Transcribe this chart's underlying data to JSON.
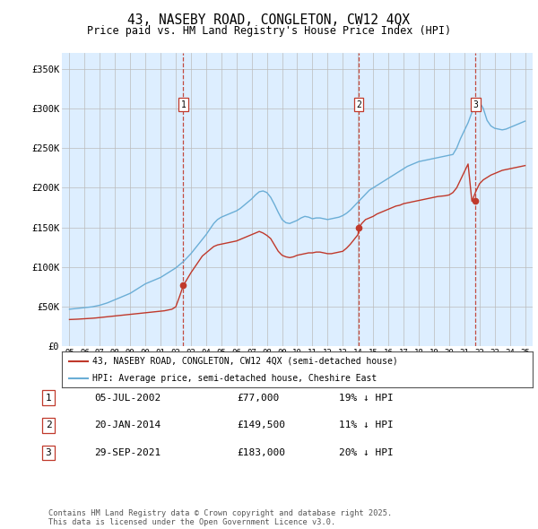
{
  "title": "43, NASEBY ROAD, CONGLETON, CW12 4QX",
  "subtitle": "Price paid vs. HM Land Registry's House Price Index (HPI)",
  "legend_line1": "43, NASEBY ROAD, CONGLETON, CW12 4QX (semi-detached house)",
  "legend_line2": "HPI: Average price, semi-detached house, Cheshire East",
  "footer": "Contains HM Land Registry data © Crown copyright and database right 2025.\nThis data is licensed under the Open Government Licence v3.0.",
  "transactions": [
    {
      "num": 1,
      "date": "05-JUL-2002",
      "price": "£77,000",
      "hpi": "19% ↓ HPI",
      "year": 2002.5
    },
    {
      "num": 2,
      "date": "20-JAN-2014",
      "price": "£149,500",
      "hpi": "11% ↓ HPI",
      "year": 2014.05
    },
    {
      "num": 3,
      "date": "29-SEP-2021",
      "price": "£183,000",
      "hpi": "20% ↓ HPI",
      "year": 2021.75
    }
  ],
  "transaction_prices": [
    77000,
    149500,
    183000
  ],
  "hpi_color": "#6baed6",
  "price_color": "#c0392b",
  "background_color": "#ddeeff",
  "ylim": [
    0,
    370000
  ],
  "yticks": [
    0,
    50000,
    100000,
    150000,
    200000,
    250000,
    300000,
    350000
  ],
  "ytick_labels": [
    "£0",
    "£50K",
    "£100K",
    "£150K",
    "£200K",
    "£250K",
    "£300K",
    "£350K"
  ],
  "hpi_data": {
    "years": [
      1995.0,
      1995.25,
      1995.5,
      1995.75,
      1996.0,
      1996.25,
      1996.5,
      1996.75,
      1997.0,
      1997.25,
      1997.5,
      1997.75,
      1998.0,
      1998.25,
      1998.5,
      1998.75,
      1999.0,
      1999.25,
      1999.5,
      1999.75,
      2000.0,
      2000.25,
      2000.5,
      2000.75,
      2001.0,
      2001.25,
      2001.5,
      2001.75,
      2002.0,
      2002.25,
      2002.5,
      2002.75,
      2003.0,
      2003.25,
      2003.5,
      2003.75,
      2004.0,
      2004.25,
      2004.5,
      2004.75,
      2005.0,
      2005.25,
      2005.5,
      2005.75,
      2006.0,
      2006.25,
      2006.5,
      2006.75,
      2007.0,
      2007.25,
      2007.5,
      2007.75,
      2008.0,
      2008.25,
      2008.5,
      2008.75,
      2009.0,
      2009.25,
      2009.5,
      2009.75,
      2010.0,
      2010.25,
      2010.5,
      2010.75,
      2011.0,
      2011.25,
      2011.5,
      2011.75,
      2012.0,
      2012.25,
      2012.5,
      2012.75,
      2013.0,
      2013.25,
      2013.5,
      2013.75,
      2014.0,
      2014.25,
      2014.5,
      2014.75,
      2015.0,
      2015.25,
      2015.5,
      2015.75,
      2016.0,
      2016.25,
      2016.5,
      2016.75,
      2017.0,
      2017.25,
      2017.5,
      2017.75,
      2018.0,
      2018.25,
      2018.5,
      2018.75,
      2019.0,
      2019.25,
      2019.5,
      2019.75,
      2020.0,
      2020.25,
      2020.5,
      2020.75,
      2021.0,
      2021.25,
      2021.5,
      2021.75,
      2022.0,
      2022.25,
      2022.5,
      2022.75,
      2023.0,
      2023.25,
      2023.5,
      2023.75,
      2024.0,
      2024.25,
      2024.5,
      2024.75,
      2025.0
    ],
    "values": [
      47000,
      47500,
      48000,
      48500,
      49000,
      49500,
      50000,
      51000,
      52000,
      53500,
      55000,
      57000,
      59000,
      61000,
      63000,
      65000,
      67000,
      70000,
      73000,
      76000,
      79000,
      81000,
      83000,
      85000,
      87000,
      90000,
      93000,
      96000,
      99000,
      103000,
      107000,
      112000,
      117000,
      123000,
      129000,
      135000,
      141000,
      148000,
      155000,
      160000,
      163000,
      165000,
      167000,
      169000,
      171000,
      174000,
      178000,
      182000,
      186000,
      191000,
      195000,
      196000,
      194000,
      188000,
      179000,
      169000,
      160000,
      156000,
      155000,
      157000,
      159000,
      162000,
      164000,
      163000,
      161000,
      162000,
      162000,
      161000,
      160000,
      161000,
      162000,
      163000,
      165000,
      168000,
      172000,
      177000,
      182000,
      187000,
      192000,
      197000,
      200000,
      203000,
      206000,
      209000,
      212000,
      215000,
      218000,
      221000,
      224000,
      227000,
      229000,
      231000,
      233000,
      234000,
      235000,
      236000,
      237000,
      238000,
      239000,
      240000,
      241000,
      242000,
      250000,
      262000,
      272000,
      282000,
      295000,
      305000,
      308000,
      300000,
      285000,
      278000,
      275000,
      274000,
      273000,
      274000,
      276000,
      278000,
      280000,
      282000,
      284000
    ]
  },
  "price_data": {
    "years": [
      1995.0,
      1995.25,
      1995.5,
      1995.75,
      1996.0,
      1996.25,
      1996.5,
      1996.75,
      1997.0,
      1997.25,
      1997.5,
      1997.75,
      1998.0,
      1998.25,
      1998.5,
      1998.75,
      1999.0,
      1999.25,
      1999.5,
      1999.75,
      2000.0,
      2000.25,
      2000.5,
      2000.75,
      2001.0,
      2001.25,
      2001.5,
      2001.75,
      2002.0,
      2002.25,
      2002.5,
      2002.75,
      2003.0,
      2003.25,
      2003.5,
      2003.75,
      2004.0,
      2004.25,
      2004.5,
      2004.75,
      2005.0,
      2005.25,
      2005.5,
      2005.75,
      2006.0,
      2006.25,
      2006.5,
      2006.75,
      2007.0,
      2007.25,
      2007.5,
      2007.75,
      2008.0,
      2008.25,
      2008.5,
      2008.75,
      2009.0,
      2009.25,
      2009.5,
      2009.75,
      2010.0,
      2010.25,
      2010.5,
      2010.75,
      2011.0,
      2011.25,
      2011.5,
      2011.75,
      2012.0,
      2012.25,
      2012.5,
      2012.75,
      2013.0,
      2013.25,
      2013.5,
      2013.75,
      2014.0,
      2014.05,
      2014.25,
      2014.5,
      2015.0,
      2015.25,
      2015.5,
      2015.75,
      2016.0,
      2016.25,
      2016.5,
      2016.75,
      2017.0,
      2017.25,
      2017.5,
      2017.75,
      2018.0,
      2018.25,
      2018.5,
      2018.75,
      2019.0,
      2019.25,
      2019.5,
      2019.75,
      2020.0,
      2020.25,
      2020.5,
      2020.75,
      2021.0,
      2021.25,
      2021.5,
      2021.75,
      2022.0,
      2022.25,
      2022.5,
      2022.75,
      2023.0,
      2023.25,
      2023.5,
      2023.75,
      2024.0,
      2024.25,
      2024.5,
      2024.75,
      2025.0
    ],
    "values": [
      34000,
      34200,
      34400,
      34700,
      35000,
      35300,
      35600,
      36000,
      36500,
      37000,
      37500,
      38000,
      38500,
      39000,
      39500,
      40000,
      40500,
      41000,
      41500,
      42000,
      42500,
      43000,
      43500,
      44000,
      44500,
      45000,
      46000,
      47000,
      50000,
      63000,
      77000,
      85000,
      93000,
      100000,
      107000,
      114000,
      118000,
      122000,
      126000,
      128000,
      129000,
      130000,
      131000,
      132000,
      133000,
      135000,
      137000,
      139000,
      141000,
      143000,
      145000,
      143000,
      140000,
      136000,
      128000,
      120000,
      115000,
      113000,
      112000,
      113000,
      115000,
      116000,
      117000,
      118000,
      118000,
      119000,
      119000,
      118000,
      117000,
      117000,
      118000,
      119000,
      120000,
      124000,
      129000,
      135000,
      141000,
      149500,
      155000,
      160000,
      164000,
      167000,
      169000,
      171000,
      173000,
      175000,
      177000,
      178000,
      180000,
      181000,
      182000,
      183000,
      184000,
      185000,
      186000,
      187000,
      188000,
      189000,
      189500,
      190000,
      191000,
      194000,
      200000,
      210000,
      220000,
      230000,
      183000,
      195000,
      205000,
      210000,
      213000,
      216000,
      218000,
      220000,
      222000,
      223000,
      224000,
      225000,
      226000,
      227000,
      228000
    ]
  }
}
